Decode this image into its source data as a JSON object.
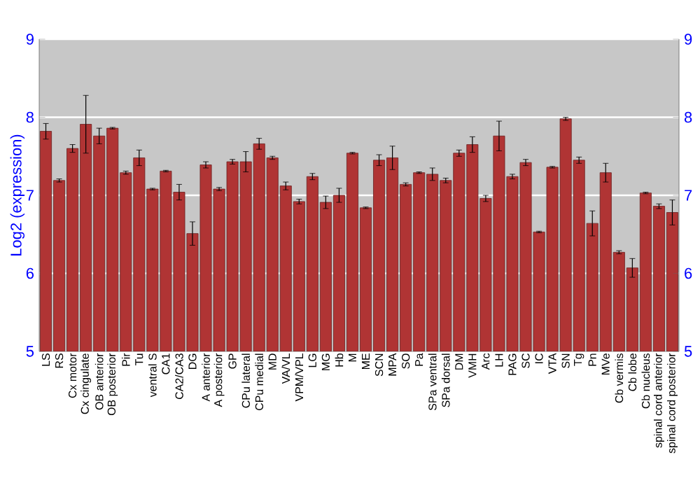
{
  "chart_data": {
    "type": "bar",
    "ylabel": "Log2 (expression)",
    "categories": [
      "LS",
      "RS",
      "Cx motor",
      "Cx cingulate",
      "OB anterior",
      "OB posterior",
      "Pir",
      "Tu",
      "ventral S",
      "CA1",
      "CA2/CA3",
      "DG",
      "A anterior",
      "A posterior",
      "GP",
      "CPu lateral",
      "CPu medial",
      "MD",
      "VA/VL",
      "VPM/VPL",
      "LG",
      "MG",
      "Hb",
      "M",
      "ME",
      "SCN",
      "MPA",
      "SO",
      "Pa",
      "SPa ventral",
      "SPa dorsal",
      "DM",
      "VMH",
      "Arc",
      "LH",
      "PAG",
      "SC",
      "IC",
      "VTA",
      "SN",
      "Tg",
      "Pn",
      "MVe",
      "Cb vermis",
      "Cb lobe",
      "Cb nucleus",
      "spinal cord anterior",
      "spinal cord posterior"
    ],
    "values": [
      7.82,
      7.19,
      7.6,
      7.91,
      7.76,
      7.86,
      7.29,
      7.48,
      7.08,
      7.31,
      7.04,
      6.51,
      7.39,
      7.08,
      7.43,
      7.43,
      7.66,
      7.48,
      7.12,
      6.92,
      7.24,
      6.91,
      7.0,
      7.54,
      6.84,
      7.45,
      7.48,
      7.14,
      7.29,
      7.27,
      7.19,
      7.54,
      7.65,
      6.96,
      7.76,
      7.24,
      7.42,
      6.53,
      7.36,
      7.98,
      7.45,
      6.64,
      7.29,
      6.27,
      6.07,
      7.03,
      6.86,
      6.78
    ],
    "errors": [
      0.1,
      0.02,
      0.05,
      0.37,
      0.1,
      0.01,
      0.02,
      0.1,
      0.01,
      0.01,
      0.1,
      0.15,
      0.04,
      0.02,
      0.03,
      0.13,
      0.07,
      0.02,
      0.05,
      0.03,
      0.04,
      0.08,
      0.09,
      0.01,
      0.01,
      0.07,
      0.15,
      0.02,
      0.01,
      0.08,
      0.03,
      0.04,
      0.1,
      0.04,
      0.19,
      0.03,
      0.04,
      0.01,
      0.01,
      0.02,
      0.04,
      0.16,
      0.12,
      0.02,
      0.12,
      0.01,
      0.03,
      0.16
    ],
    "color": "#b03434",
    "ylim": [
      5,
      9
    ],
    "yticks": [
      5,
      6,
      7,
      8,
      9
    ],
    "y2lim": [
      5,
      9
    ],
    "y2ticks": [
      5,
      6,
      7,
      8,
      9
    ],
    "grid": "y"
  }
}
